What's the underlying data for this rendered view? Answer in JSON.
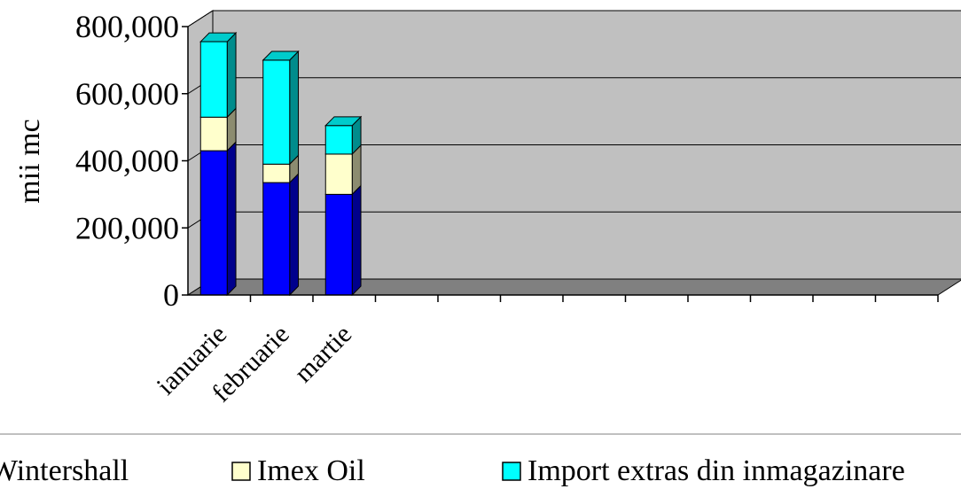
{
  "chart_data": {
    "type": "bar",
    "stacked": true,
    "three_d": true,
    "categories": [
      "ianuarie",
      "februarie",
      "martie"
    ],
    "series": [
      {
        "name": "Wintershall",
        "color": "#0000ff",
        "values": [
          430000,
          335000,
          300000
        ]
      },
      {
        "name": "Imex Oil",
        "color": "#ffffcc",
        "values": [
          100000,
          55000,
          120000
        ]
      },
      {
        "name": "Import extras din inmagazinare",
        "color": "#00ffff",
        "values": [
          225000,
          310000,
          85000
        ]
      }
    ],
    "ylabel": "mii mc",
    "xlabel": "",
    "title": "",
    "ylim": [
      0,
      800000
    ],
    "yticks": [
      "0",
      "200,000",
      "400,000",
      "600,000",
      "800,000"
    ],
    "grid": true,
    "legend_position": "bottom",
    "colors": {
      "plot_back": "#c0c0c0",
      "floor": "#808080",
      "axis": "#000000"
    }
  }
}
